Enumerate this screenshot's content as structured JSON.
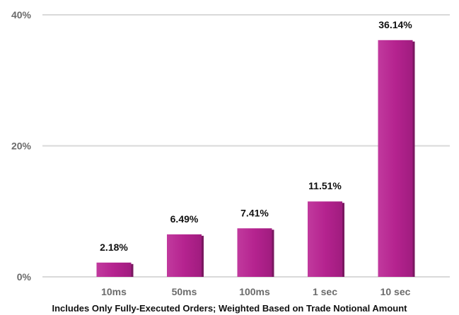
{
  "chart_data": {
    "type": "bar",
    "categories": [
      "10ms",
      "50ms",
      "100ms",
      "1 sec",
      "10 sec"
    ],
    "values": [
      2.18,
      6.49,
      7.41,
      11.51,
      36.14
    ],
    "data_labels": [
      "2.18%",
      "6.49%",
      "7.41%",
      "11.51%",
      "36.14%"
    ],
    "yticks": [
      {
        "value": 0,
        "label": "0%"
      },
      {
        "value": 20,
        "label": "20%"
      },
      {
        "value": 40,
        "label": "40%"
      }
    ],
    "ylim": [
      0,
      40
    ],
    "grid": true,
    "legend": "none",
    "bar_color": "#b5238f",
    "bar_shadow_color": "#7a1860",
    "caption": "Includes Only Fully-Executed Orders; Weighted Based on Trade Notional Amount"
  }
}
